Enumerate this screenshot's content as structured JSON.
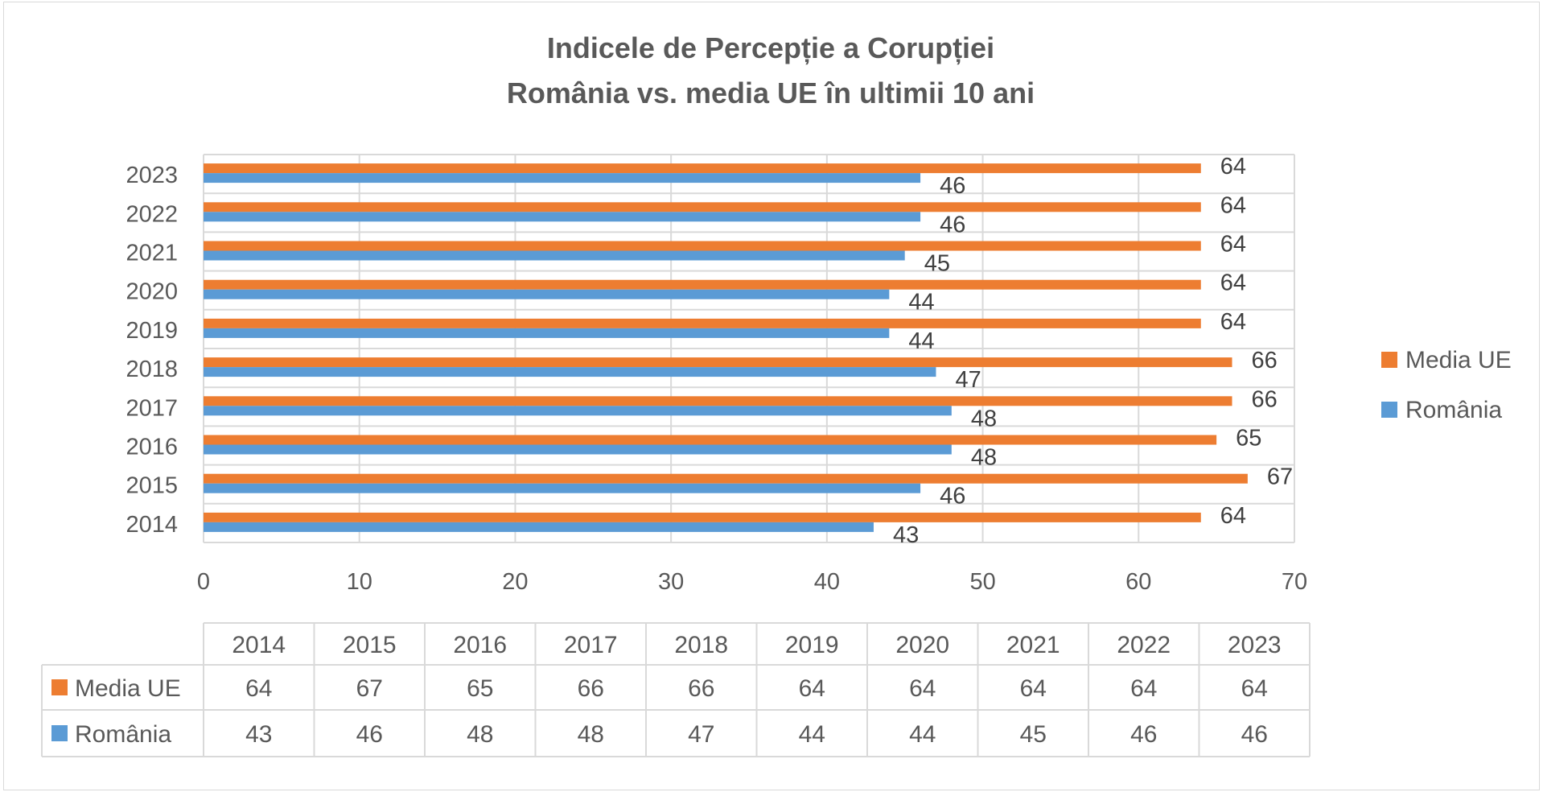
{
  "chart_data": {
    "type": "bar",
    "orientation": "horizontal",
    "title": [
      "Indicele de Percepție a Corupției",
      "România vs. media UE în ultimii 10 ani"
    ],
    "categories": [
      "2014",
      "2015",
      "2016",
      "2017",
      "2018",
      "2019",
      "2020",
      "2021",
      "2022",
      "2023"
    ],
    "series": [
      {
        "name": "Media UE",
        "color": "#ED7D31",
        "values": [
          64,
          67,
          65,
          66,
          66,
          64,
          64,
          64,
          64,
          64
        ]
      },
      {
        "name": "România",
        "color": "#5B9BD5",
        "values": [
          43,
          46,
          48,
          48,
          47,
          44,
          44,
          45,
          46,
          46
        ]
      }
    ],
    "xlim": [
      0,
      70
    ],
    "xticks": [
      0,
      10,
      20,
      30,
      40,
      50,
      60,
      70
    ],
    "grid": true,
    "legend": "right",
    "data_labels": true,
    "data_table": true
  }
}
